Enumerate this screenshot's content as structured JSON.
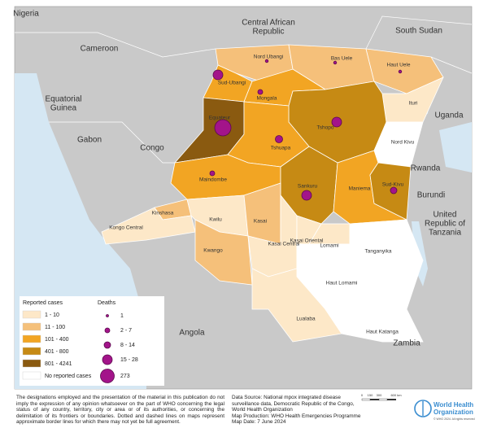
{
  "countries": [
    [
      "Nigeria"
    ],
    [
      "Central African",
      "Republic"
    ],
    [
      "South Sudan"
    ],
    [
      "Cameroon"
    ],
    [
      "Equatorial",
      "Guinea"
    ],
    [
      "Gabon"
    ],
    [
      "Congo"
    ],
    [
      "Uganda"
    ],
    [
      "Rwanda"
    ],
    [
      "Burundi"
    ],
    [
      "United",
      "Republic of",
      "Tanzania"
    ],
    [
      "Angola"
    ],
    [
      "Zambia"
    ]
  ],
  "provinces": [
    "Nord Ubangi",
    "Bas Uele",
    "Haut Uele",
    "Sud-Ubangi",
    "Mongala",
    "Ituri",
    "Equateur",
    "Tshopo",
    "Tshuapa",
    "Nord Kivu",
    "Maindombe",
    "Sankuru",
    "Maniema",
    "Sud-Kivu",
    "Kinshasa",
    "Kwilu",
    "Kasai",
    "Kongo Central",
    "Kwango",
    "Kasai Central",
    "Kasai Oriental",
    "Lomami",
    "Tanganyika",
    "Haut Lomami",
    "Lualaba",
    "Haut Katanga"
  ],
  "legend": {
    "cases_title": "Reported cases",
    "cases": [
      "1 - 10",
      "11 - 100",
      "101 - 400",
      "401 - 800",
      "801 - 4241",
      "No reported cases"
    ],
    "deaths_title": "Deaths",
    "deaths": [
      "1",
      "2 - 7",
      "8 - 14",
      "15 - 28",
      "273"
    ]
  },
  "footer": {
    "disclaimer": "The designations employed and the presentation of the material in this publication do not imply the expression of any opinion whatsoever on the part of WHO concerning the legal status of any country, territory, city or area or of its authorities, or concerning the delimitation of its frontiers or boundaries. Dotted and dashed lines on maps represent approximate border lines for which there may not yet be full agreement.",
    "source": "Data Source: National mpox integrated disease surveillance data, Democratic Republic of the Congo, World Health Organization",
    "production": "Map Production: WHO Health Emergencies Programme",
    "date": "Map Date: 7 June 2024",
    "scale": [
      "0",
      "150",
      "300",
      "600 km"
    ]
  },
  "logo": {
    "name": [
      "World Health",
      "Organization"
    ],
    "copyright": "© WHO 2024. All rights reserved"
  }
}
